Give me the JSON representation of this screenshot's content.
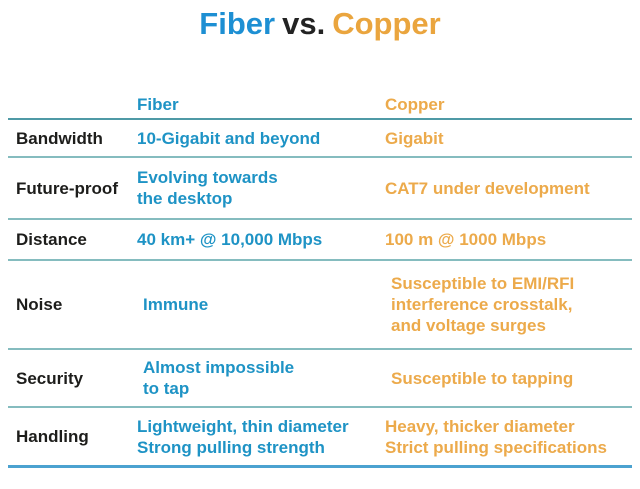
{
  "title": {
    "fiber": "Fiber",
    "vs": "vs.",
    "copper": "Copper"
  },
  "columns": {
    "fiber": "Fiber",
    "copper": "Copper"
  },
  "rows": [
    {
      "label": "Bandwidth",
      "fiber": "10-Gigabit and beyond",
      "copper": "Gigabit"
    },
    {
      "label": "Future-proof",
      "fiber": "Evolving towards\nthe desktop",
      "copper": "CAT7 under development"
    },
    {
      "label": "Distance",
      "fiber": "40 km+ @ 10,000 Mbps",
      "copper": "100 m @ 1000 Mbps"
    },
    {
      "label": "Noise",
      "fiber": "Immune",
      "copper": "Susceptible to EMI/RFI\ninterference crosstalk,\nand voltage surges"
    },
    {
      "label": "Security",
      "fiber": "Almost impossible\nto tap",
      "copper": "Susceptible to tapping"
    },
    {
      "label": "Handling",
      "fiber": "Lightweight, thin diameter\nStrong pulling strength",
      "copper": "Heavy, thicker diameter\nStrict pulling specifications"
    }
  ],
  "colors": {
    "title_fiber": "#1d8fd3",
    "title_copper": "#eaa53e",
    "fiber_text": "#1e93c5",
    "copper_text": "#ecaa4b",
    "label_text": "#1d1d1b",
    "divider_dark": "#4f9aa6",
    "divider_light": "#85bcbf",
    "bottom_line": "#4ba2d0"
  },
  "chart_data": {
    "type": "table",
    "title": "Fiber vs. Copper",
    "columns": [
      "",
      "Fiber",
      "Copper"
    ],
    "rows": [
      [
        "Bandwidth",
        "10-Gigabit and beyond",
        "Gigabit"
      ],
      [
        "Future-proof",
        "Evolving towards the desktop",
        "CAT7 under development"
      ],
      [
        "Distance",
        "40 km+ @ 10,000 Mbps",
        "100 m @ 1000 Mbps"
      ],
      [
        "Noise",
        "Immune",
        "Susceptible to EMI/RFI interference crosstalk, and voltage surges"
      ],
      [
        "Security",
        "Almost impossible to tap",
        "Susceptible to tapping"
      ],
      [
        "Handling",
        "Lightweight, thin diameter; Strong pulling strength",
        "Heavy, thicker diameter; Strict pulling specifications"
      ]
    ],
    "legend_position": "none",
    "grid": "horizontal-dividers"
  }
}
